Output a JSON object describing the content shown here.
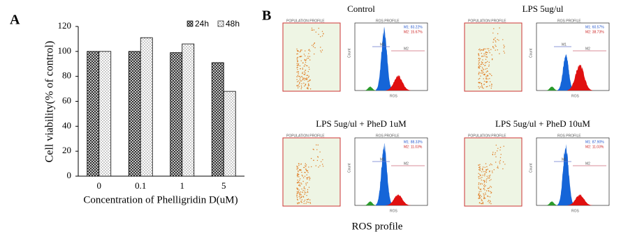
{
  "panel_labels": [
    "A",
    "B"
  ],
  "chart_data": {
    "type": "bar",
    "xlabel": "Concentration  of Phelligridin  D(uM)",
    "ylabel": "Cell viability(% of control)",
    "categories": [
      "0",
      "0.1",
      "1",
      "5"
    ],
    "series": [
      {
        "name": "24h",
        "pattern": "crosshatch",
        "values": [
          100,
          100,
          99,
          91
        ]
      },
      {
        "name": "48h",
        "pattern": "dots",
        "values": [
          100,
          111,
          106,
          68
        ]
      }
    ],
    "ylim": [
      0,
      120
    ],
    "yticks": [
      0,
      20,
      40,
      60,
      80,
      100,
      120
    ],
    "legend": "top-right"
  },
  "flow_cytometry": {
    "caption": "ROS profile",
    "population_title": "POPULATION PROFILE",
    "histogram_title": "ROS PROFILE",
    "x_axis": "ROS",
    "count_axis": "Count",
    "markers": [
      "M1",
      "M2"
    ],
    "panels": [
      {
        "title": "Control",
        "m1": "M1: 83.22%",
        "m2": "M2: 15.67%"
      },
      {
        "title": "LPS 5ug/ul",
        "m1": "M1: 60.57%",
        "m2": "M2: 38.73%"
      },
      {
        "title": "LPS 5ug/ul + PheD 1uM",
        "m1": "M1: 88.33%",
        "m2": "M2: 11.03%"
      },
      {
        "title": "LPS 5ug/ul + PheD 10uM",
        "m1": "M1: 87.90%",
        "m2": "M2: 11.03%"
      }
    ]
  }
}
